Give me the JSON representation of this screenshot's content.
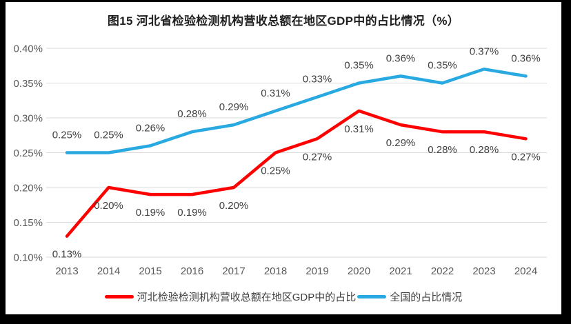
{
  "chart_data": {
    "type": "line",
    "title": "图15 河北省检验检测机构营收总额在地区GDP中的占比情况（%）",
    "categories": [
      "2013",
      "2014",
      "2015",
      "2016",
      "2017",
      "2018",
      "2019",
      "2020",
      "2021",
      "2022",
      "2023",
      "2024"
    ],
    "series": [
      {
        "name": "河北检验检测机构营收总额在地区GDP中的占比",
        "color": "#ff0000",
        "values": [
          0.13,
          0.2,
          0.19,
          0.19,
          0.2,
          0.25,
          0.27,
          0.31,
          0.29,
          0.28,
          0.28,
          0.27
        ],
        "labels": [
          "0.13%",
          "0.20%",
          "0.19%",
          "0.19%",
          "0.20%",
          "0.25%",
          "0.27%",
          "0.31%",
          "0.29%",
          "0.28%",
          "0.28%",
          "0.27%"
        ],
        "label_position": "below"
      },
      {
        "name": "全国的占比情况",
        "color": "#29a9e1",
        "values": [
          0.25,
          0.25,
          0.26,
          0.28,
          0.29,
          0.31,
          0.33,
          0.35,
          0.36,
          0.35,
          0.37,
          0.36
        ],
        "labels": [
          "0.25%",
          "0.25%",
          "0.26%",
          "0.28%",
          "0.29%",
          "0.31%",
          "0.33%",
          "0.35%",
          "0.36%",
          "0.35%",
          "0.37%",
          "0.36%"
        ],
        "label_position": "above"
      }
    ],
    "xlabel": "",
    "ylabel": "",
    "ylim": [
      0.1,
      0.4
    ],
    "yticks": [
      {
        "value": 0.4,
        "label": "0.40%"
      },
      {
        "value": 0.35,
        "label": "0.35%"
      },
      {
        "value": 0.3,
        "label": "0.30%"
      },
      {
        "value": 0.25,
        "label": "0.25%"
      },
      {
        "value": 0.2,
        "label": "0.20%"
      },
      {
        "value": 0.15,
        "label": "0.15%"
      },
      {
        "value": 0.1,
        "label": "0.10%"
      }
    ],
    "grid": true,
    "legend_position": "bottom"
  },
  "colors": {
    "frame_border": "#000000",
    "chart_background": "#ffffff",
    "gridline": "#d9d9d9",
    "axis_text": "#595959",
    "data_label_text": "#404040",
    "title_text": "#1f1f1f",
    "series_hebei": "#ff0000",
    "series_national": "#29a9e1"
  }
}
